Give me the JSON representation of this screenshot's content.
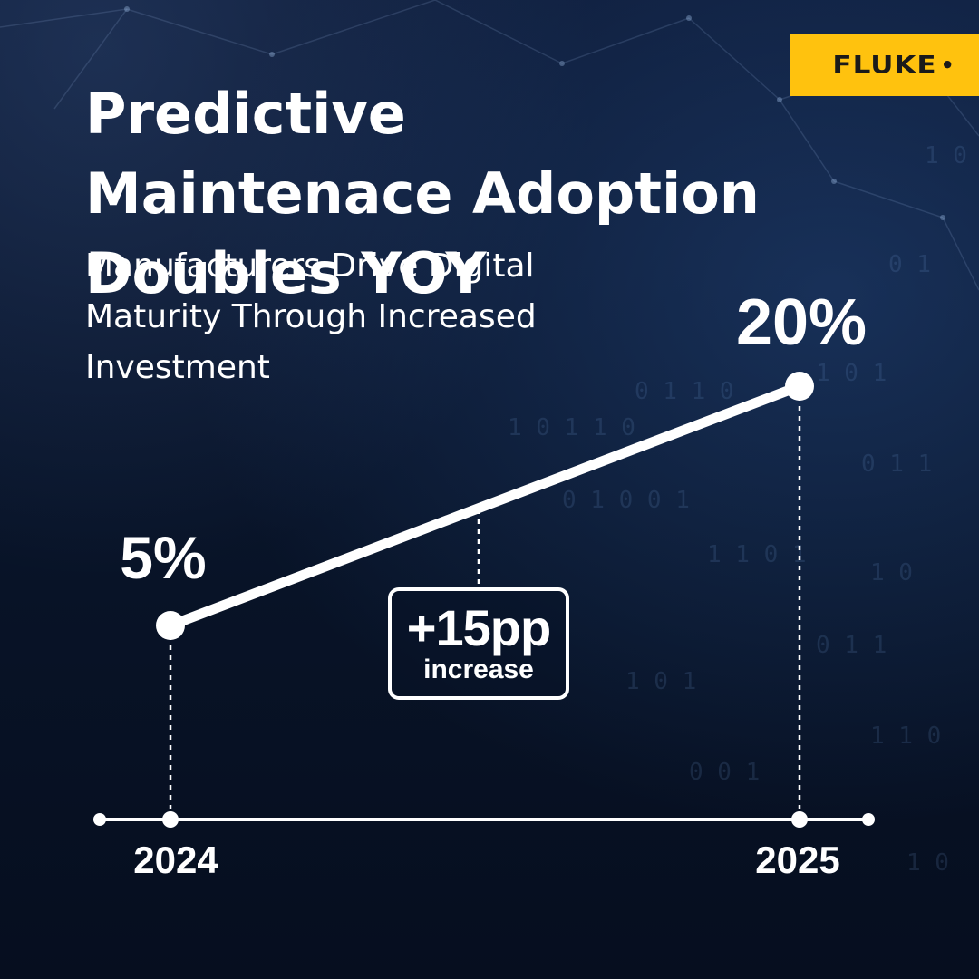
{
  "brand": {
    "logo_text": "FLUKE",
    "logo_color": "#ffc20e"
  },
  "title": "Predictive Maintenace Adoption Doubles YOY",
  "subtitle": "Manufacturers Drive Digital Maturity Through Increased Investment",
  "callout": {
    "value": "+15pp",
    "label": "increase"
  },
  "colors": {
    "background": "#0b1730",
    "line": "#ffffff",
    "accent": "#ffc20e"
  },
  "chart_data": {
    "type": "line",
    "x": [
      "2024",
      "2025"
    ],
    "series": [
      {
        "values": [
          5,
          20
        ],
        "value_labels": [
          "5%",
          "20%"
        ]
      }
    ],
    "title": "Predictive Maintenace Adoption Doubles YOY",
    "xlabel": "",
    "ylabel": "",
    "ylim": [
      0,
      25
    ],
    "grid": false,
    "legend": "none",
    "annotation": "+15pp increase"
  }
}
